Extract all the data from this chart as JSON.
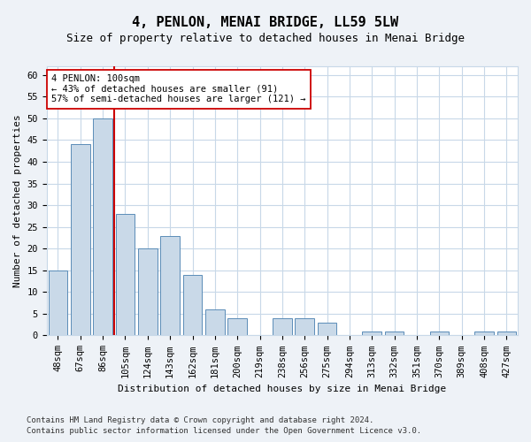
{
  "title": "4, PENLON, MENAI BRIDGE, LL59 5LW",
  "subtitle": "Size of property relative to detached houses in Menai Bridge",
  "xlabel": "Distribution of detached houses by size in Menai Bridge",
  "ylabel": "Number of detached properties",
  "categories": [
    "48sqm",
    "67sqm",
    "86sqm",
    "105sqm",
    "124sqm",
    "143sqm",
    "162sqm",
    "181sqm",
    "200sqm",
    "219sqm",
    "238sqm",
    "256sqm",
    "275sqm",
    "294sqm",
    "313sqm",
    "332sqm",
    "351sqm",
    "370sqm",
    "389sqm",
    "408sqm",
    "427sqm"
  ],
  "values": [
    15,
    44,
    50,
    28,
    20,
    23,
    14,
    6,
    4,
    0,
    4,
    4,
    3,
    0,
    1,
    1,
    0,
    1,
    0,
    1,
    1
  ],
  "bar_color": "#c9d9e8",
  "bar_edge_color": "#5b8db8",
  "vline_x": 2.5,
  "vline_color": "#cc0000",
  "annotation_text": "4 PENLON: 100sqm\n← 43% of detached houses are smaller (91)\n57% of semi-detached houses are larger (121) →",
  "annotation_box_color": "#ffffff",
  "annotation_box_edge": "#cc0000",
  "ylim": [
    0,
    62
  ],
  "yticks": [
    0,
    5,
    10,
    15,
    20,
    25,
    30,
    35,
    40,
    45,
    50,
    55,
    60
  ],
  "footer_line1": "Contains HM Land Registry data © Crown copyright and database right 2024.",
  "footer_line2": "Contains public sector information licensed under the Open Government Licence v3.0.",
  "background_color": "#eef2f7",
  "plot_bg_color": "#ffffff",
  "grid_color": "#c8d8e8",
  "title_fontsize": 11,
  "subtitle_fontsize": 9,
  "xlabel_fontsize": 8,
  "ylabel_fontsize": 8,
  "tick_fontsize": 7.5,
  "footer_fontsize": 6.5
}
